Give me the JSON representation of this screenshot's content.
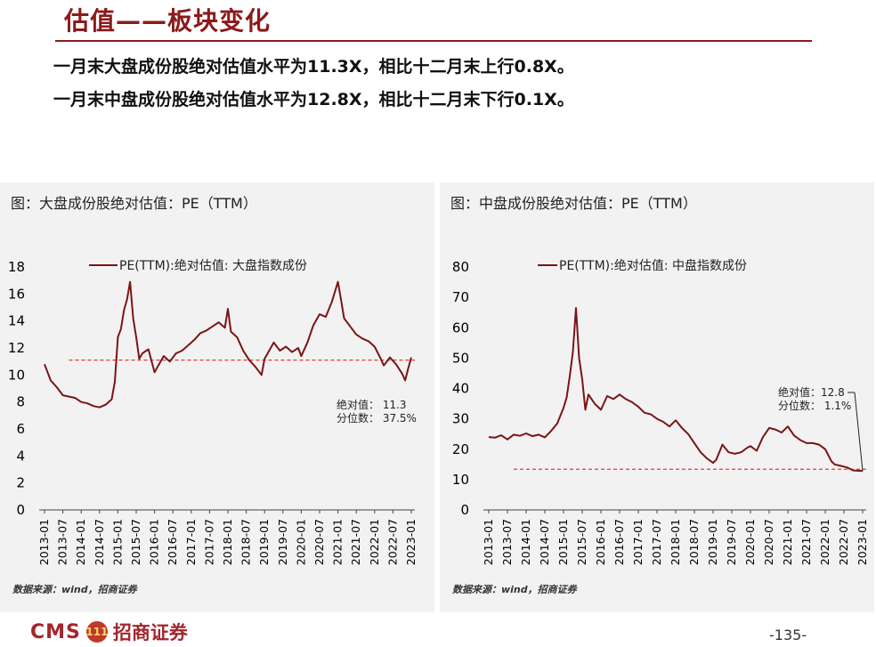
{
  "header": {
    "title": "估值——板块变化",
    "line1": "一月末大盘成份股绝对估值水平为11.3X，相比十二月末上行0.8X。",
    "line2": "一月末中盘成份股绝对估值水平为12.8X，相比十二月末下行0.1X。"
  },
  "footer": {
    "logo_text": "CMS",
    "logo_mark": "111",
    "logo_cn": "招商证券",
    "page": "-135-"
  },
  "colors": {
    "line": "#7b1416",
    "reference": "#e23b3b",
    "accent": "#8B1A1A"
  },
  "chart_data": [
    {
      "type": "line",
      "title": "图：大盘成份股绝对估值：PE（TTM）",
      "legend": "PE(TTM):绝对估值: 大盘指数成份",
      "legend_position": "top",
      "ylim": [
        0,
        18
      ],
      "yticks": [
        0,
        2,
        4,
        6,
        8,
        10,
        12,
        14,
        16,
        18
      ],
      "xlabels": [
        "2013-01",
        "2013-07",
        "2014-01",
        "2014-07",
        "2015-01",
        "2015-07",
        "2016-01",
        "2016-07",
        "2017-01",
        "2017-07",
        "2018-01",
        "2018-07",
        "2019-01",
        "2019-07",
        "2020-01",
        "2020-07",
        "2021-01",
        "2021-07",
        "2022-01",
        "2022-07",
        "2023-01"
      ],
      "series": [
        {
          "name": "PE(TTM):绝对估值: 大盘指数成份",
          "x": [
            "2013-01",
            "2013-03",
            "2013-05",
            "2013-07",
            "2013-09",
            "2013-11",
            "2014-01",
            "2014-03",
            "2014-05",
            "2014-07",
            "2014-09",
            "2014-11",
            "2014-12",
            "2015-01",
            "2015-02",
            "2015-03",
            "2015-04",
            "2015-05",
            "2015-06",
            "2015-07",
            "2015-08",
            "2015-09",
            "2015-11",
            "2016-01",
            "2016-02",
            "2016-04",
            "2016-06",
            "2016-08",
            "2016-10",
            "2016-12",
            "2017-02",
            "2017-04",
            "2017-06",
            "2017-08",
            "2017-10",
            "2017-12",
            "2018-01",
            "2018-02",
            "2018-04",
            "2018-06",
            "2018-08",
            "2018-10",
            "2018-12",
            "2019-01",
            "2019-02",
            "2019-04",
            "2019-06",
            "2019-08",
            "2019-10",
            "2019-12",
            "2020-01",
            "2020-03",
            "2020-05",
            "2020-07",
            "2020-09",
            "2020-11",
            "2021-01",
            "2021-02",
            "2021-03",
            "2021-05",
            "2021-07",
            "2021-09",
            "2021-11",
            "2022-01",
            "2022-03",
            "2022-04",
            "2022-06",
            "2022-08",
            "2022-10",
            "2022-11",
            "2022-12",
            "2023-01"
          ],
          "values": [
            10.8,
            9.6,
            9.1,
            8.5,
            8.4,
            8.3,
            8.0,
            7.9,
            7.7,
            7.6,
            7.8,
            8.2,
            9.5,
            12.8,
            13.4,
            14.8,
            15.6,
            16.9,
            14.2,
            12.8,
            11.2,
            11.6,
            11.9,
            10.2,
            10.6,
            11.4,
            11.0,
            11.6,
            11.8,
            12.2,
            12.6,
            13.1,
            13.3,
            13.6,
            13.9,
            13.5,
            14.9,
            13.2,
            12.8,
            11.8,
            11.1,
            10.6,
            10.0,
            11.2,
            11.6,
            12.4,
            11.8,
            12.1,
            11.7,
            12.0,
            11.4,
            12.4,
            13.7,
            14.5,
            14.3,
            15.4,
            16.9,
            15.6,
            14.2,
            13.6,
            13.0,
            12.7,
            12.5,
            12.1,
            11.2,
            10.7,
            11.3,
            10.8,
            10.1,
            9.6,
            10.5,
            11.3
          ]
        }
      ],
      "reference_value": 11.1,
      "annotations": [
        "绝对值： 11.3",
        "分位数： 37.5%"
      ],
      "source": "数据来源：wind，招商证券"
    },
    {
      "type": "line",
      "title": "图：中盘成份股绝对估值：PE（TTM）",
      "legend": "PE(TTM):绝对估值: 中盘指数成份",
      "legend_position": "top",
      "ylim": [
        0,
        80
      ],
      "yticks": [
        0,
        10,
        20,
        30,
        40,
        50,
        60,
        70,
        80
      ],
      "xlabels": [
        "2013-01",
        "2013-07",
        "2014-01",
        "2014-07",
        "2015-01",
        "2015-07",
        "2016-01",
        "2016-07",
        "2017-01",
        "2017-07",
        "2018-01",
        "2018-07",
        "2019-01",
        "2019-07",
        "2020-01",
        "2020-07",
        "2021-01",
        "2021-07",
        "2022-01",
        "2022-07",
        "2023-01"
      ],
      "series": [
        {
          "name": "PE(TTM):绝对估值: 中盘指数成份",
          "x": [
            "2013-01",
            "2013-03",
            "2013-05",
            "2013-07",
            "2013-09",
            "2013-11",
            "2014-01",
            "2014-03",
            "2014-05",
            "2014-07",
            "2014-09",
            "2014-11",
            "2015-01",
            "2015-02",
            "2015-03",
            "2015-04",
            "2015-05",
            "2015-06",
            "2015-07",
            "2015-08",
            "2015-09",
            "2015-11",
            "2016-01",
            "2016-03",
            "2016-05",
            "2016-07",
            "2016-09",
            "2016-11",
            "2017-01",
            "2017-03",
            "2017-05",
            "2017-07",
            "2017-09",
            "2017-11",
            "2018-01",
            "2018-03",
            "2018-05",
            "2018-07",
            "2018-09",
            "2018-11",
            "2019-01",
            "2019-02",
            "2019-04",
            "2019-06",
            "2019-08",
            "2019-10",
            "2019-12",
            "2020-01",
            "2020-03",
            "2020-05",
            "2020-07",
            "2020-09",
            "2020-11",
            "2021-01",
            "2021-03",
            "2021-05",
            "2021-07",
            "2021-09",
            "2021-11",
            "2022-01",
            "2022-03",
            "2022-04",
            "2022-06",
            "2022-08",
            "2022-10",
            "2022-12",
            "2023-01"
          ],
          "values": [
            24.0,
            23.8,
            24.6,
            23.2,
            24.8,
            24.4,
            25.2,
            24.3,
            24.8,
            23.9,
            26.0,
            28.5,
            33.6,
            37.0,
            44.0,
            52.0,
            66.5,
            50.0,
            43.0,
            33.0,
            38.0,
            35.0,
            33.0,
            37.5,
            36.5,
            38.0,
            36.5,
            35.5,
            34.0,
            32.0,
            31.5,
            30.0,
            29.0,
            27.5,
            29.5,
            27.0,
            25.0,
            22.0,
            19.0,
            17.0,
            15.5,
            16.5,
            21.5,
            19.0,
            18.5,
            19.0,
            20.5,
            21.0,
            19.5,
            24.0,
            27.0,
            26.5,
            25.5,
            27.5,
            24.5,
            23.0,
            22.0,
            22.0,
            21.5,
            20.0,
            16.0,
            15.0,
            14.5,
            14.0,
            13.0,
            12.9,
            12.8
          ]
        }
      ],
      "reference_value": 13.4,
      "annotations": [
        "绝对值：12.8",
        "分位数： 1.1%"
      ],
      "source": "数据来源：wind，招商证券"
    }
  ]
}
